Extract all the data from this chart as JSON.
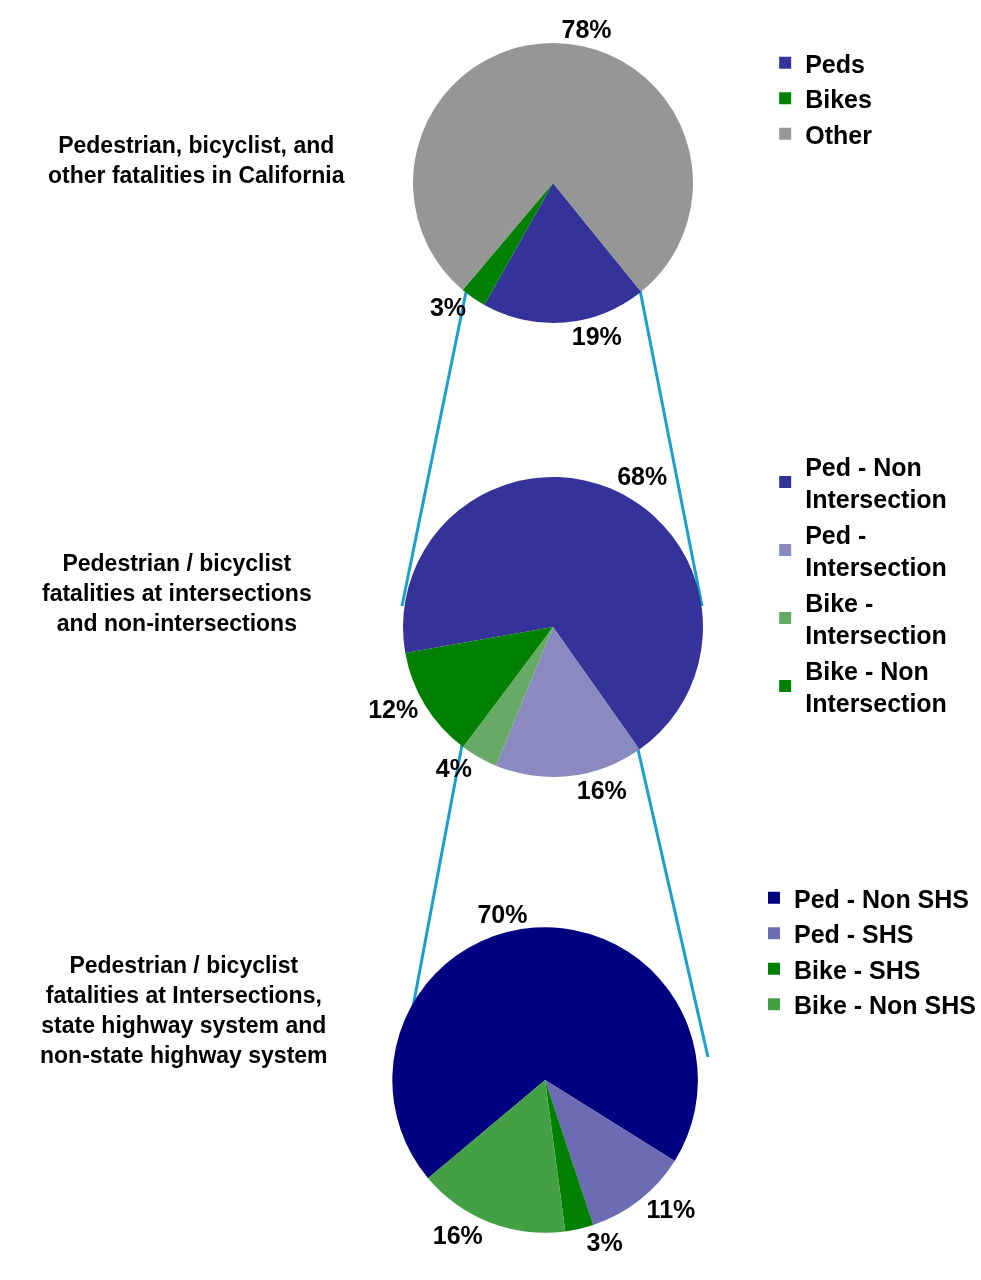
{
  "chart_data": [
    {
      "type": "pie",
      "title": "Pedestrian, bicyclist, and other fatalities in California",
      "categories": [
        "Peds",
        "Bikes",
        "Other"
      ],
      "values": [
        19,
        3,
        78
      ],
      "colors": [
        "#333399",
        "#008000",
        "#969696"
      ],
      "value_labels": [
        "19%",
        "3%",
        "78%"
      ],
      "legend": "right"
    },
    {
      "type": "pie",
      "title": "Pedestrian / bicyclist fatalities at intersections and non-intersections",
      "categories": [
        "Ped - Non Intersection",
        "Ped - Intersection",
        "Bike - Intersection",
        "Bike - Non Intersection"
      ],
      "values": [
        68,
        16,
        4,
        12
      ],
      "colors": [
        "#333399",
        "#8a8ac0",
        "#66aa66",
        "#008000"
      ],
      "value_labels": [
        "68%",
        "16%",
        "4%",
        "12%"
      ],
      "legend": "right"
    },
    {
      "type": "pie",
      "title": "Pedestrian / bicyclist fatalities at Intersections, state highway system and non-state highway system",
      "categories": [
        "Ped - Non SHS",
        "Ped - SHS",
        "Bike - SHS",
        "Bike - Non SHS"
      ],
      "values": [
        70,
        11,
        3,
        16
      ],
      "colors": [
        "#000080",
        "#6c6cb4",
        "#008000",
        "#44a044"
      ],
      "value_labels": [
        "70%",
        "11%",
        "3%",
        "16%"
      ],
      "legend": "right"
    }
  ]
}
